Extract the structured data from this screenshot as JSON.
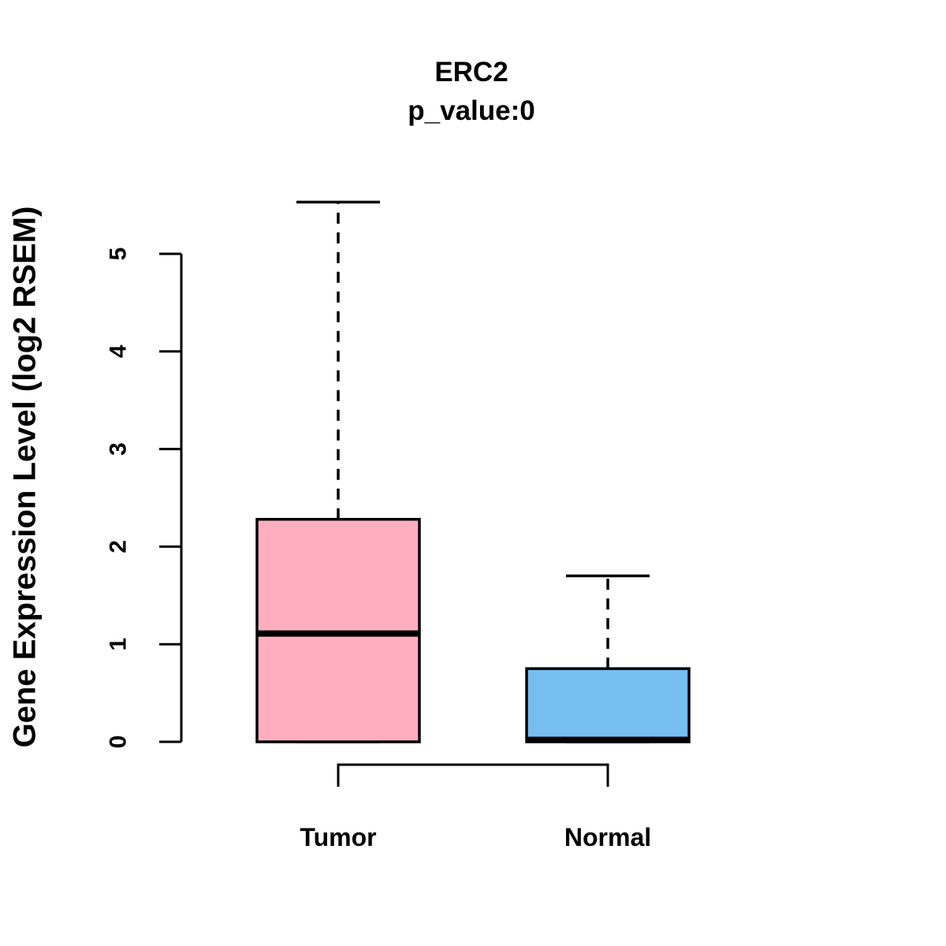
{
  "page": {
    "background": "#FFFFFF"
  },
  "chart_data": {
    "type": "boxplot",
    "title": "ERC2",
    "subtitle": "p_value:0",
    "ylabel": "Gene Expression Level (log2 RSEM)",
    "xlabel": "",
    "ylim": [
      0,
      5
    ],
    "yticks": [
      0,
      1,
      2,
      3,
      4,
      5
    ],
    "grid": false,
    "legend": "none",
    "axis_color": "#000000",
    "categories": [
      "Tumor",
      "Normal"
    ],
    "groups": [
      {
        "label": "Tumor",
        "color": "#FFAEC0",
        "lower_whisker": 0,
        "q1": 0,
        "median": 1.11,
        "q3": 2.28,
        "upper_whisker": 5.53
      },
      {
        "label": "Normal",
        "color": "#76BEF2",
        "lower_whisker": 0,
        "q1": 0,
        "median": 0.02,
        "q3": 0.75,
        "upper_whisker": 1.7
      }
    ],
    "comparison_bracket": {
      "between": [
        "Tumor",
        "Normal"
      ],
      "label": ""
    }
  }
}
